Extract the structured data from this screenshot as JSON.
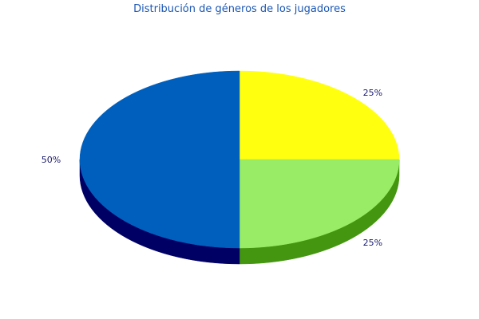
{
  "chart_data": {
    "type": "pie",
    "title": "Distribución de géneros de los jugadores",
    "slices": [
      {
        "label": "25%",
        "value": 25,
        "color": "#ffff0f",
        "side_color": "#b3b300"
      },
      {
        "label": "25%",
        "value": 25,
        "color": "#99ec66",
        "side_color": "#449610"
      },
      {
        "label": "50%",
        "value": 50,
        "color": "#005fbd",
        "side_color": "#000064"
      }
    ],
    "style": "3d"
  }
}
